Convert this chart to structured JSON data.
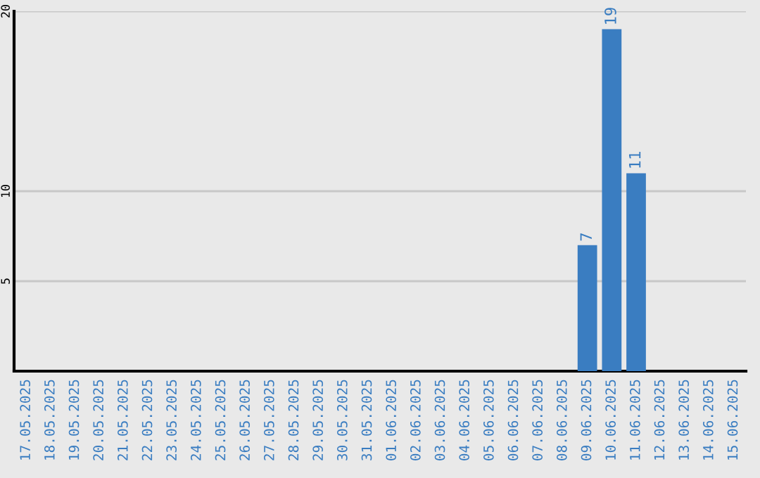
{
  "chart_data": {
    "type": "bar",
    "categories": [
      "17.05.2025",
      "18.05.2025",
      "19.05.2025",
      "20.05.2025",
      "21.05.2025",
      "22.05.2025",
      "23.05.2025",
      "24.05.2025",
      "25.05.2025",
      "26.05.2025",
      "27.05.2025",
      "28.05.2025",
      "29.05.2025",
      "30.05.2025",
      "31.05.2025",
      "01.06.2025",
      "02.06.2025",
      "03.06.2025",
      "04.06.2025",
      "05.06.2025",
      "06.06.2025",
      "07.06.2025",
      "08.06.2025",
      "09.06.2025",
      "10.06.2025",
      "11.06.2025",
      "12.06.2025",
      "13.06.2025",
      "14.06.2025",
      "15.06.2025"
    ],
    "values": [
      0,
      0,
      0,
      0,
      0,
      0,
      0,
      0,
      0,
      0,
      0,
      0,
      0,
      0,
      0,
      0,
      0,
      0,
      0,
      0,
      0,
      0,
      0,
      7,
      19,
      11,
      0,
      0,
      0,
      0
    ],
    "value_labels": [
      null,
      null,
      null,
      null,
      null,
      null,
      null,
      null,
      null,
      null,
      null,
      null,
      null,
      null,
      null,
      null,
      null,
      null,
      null,
      null,
      null,
      null,
      null,
      "7",
      "19",
      "11",
      null,
      null,
      null,
      null
    ],
    "color": "#3a7dc1",
    "ylim": [
      0,
      20
    ],
    "yticks": [
      5,
      10,
      20
    ],
    "grid": "y",
    "legend": false
  }
}
